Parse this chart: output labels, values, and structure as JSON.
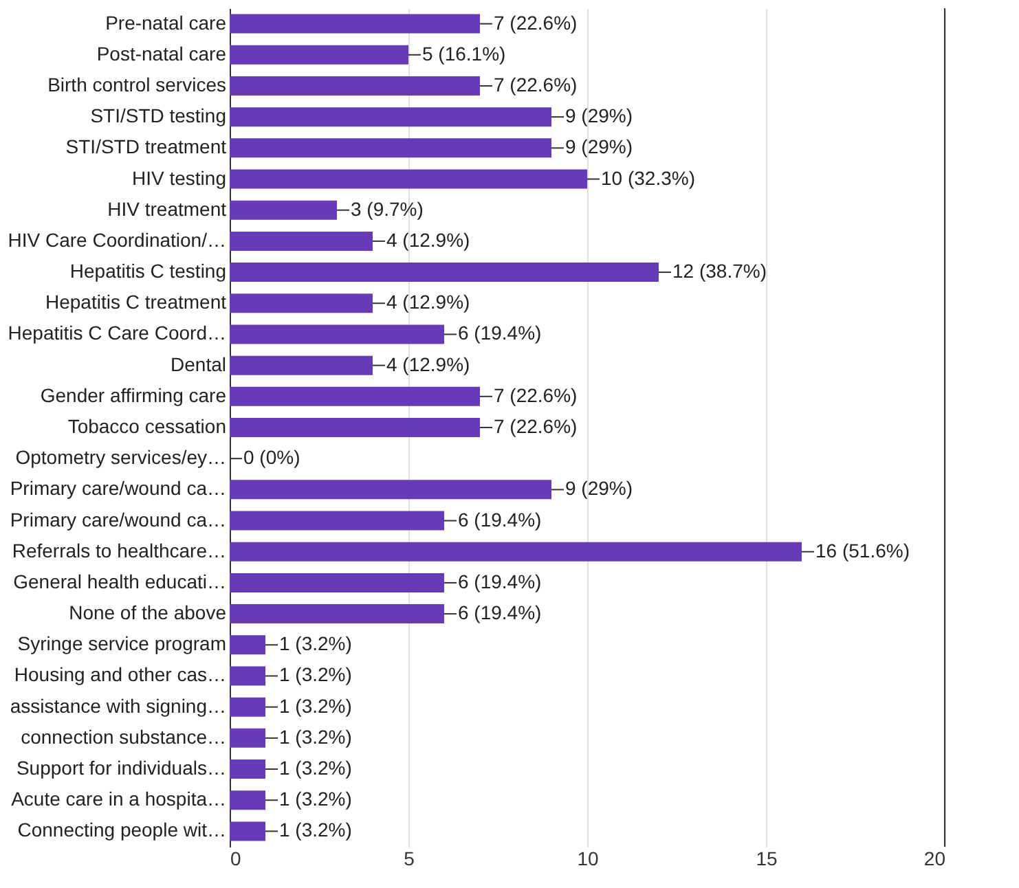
{
  "chart_data": {
    "type": "bar",
    "orientation": "horizontal",
    "categories": [
      "Pre-natal care",
      "Post-natal care",
      "Birth control services",
      "STI/STD testing",
      "STI/STD treatment",
      "HIV testing",
      "HIV treatment",
      "HIV Care Coordination/…",
      "Hepatitis C testing",
      "Hepatitis C treatment",
      "Hepatitis C Care Coord…",
      "Dental",
      "Gender affirming care",
      "Tobacco cessation",
      "Optometry services/ey…",
      "Primary care/wound ca…",
      "Primary care/wound ca…",
      "Referrals to healthcare…",
      "General health educati…",
      "None of the above",
      "Syringe service program",
      "Housing and other cas…",
      "assistance with signing…",
      "connection substance…",
      "Support for individuals…",
      "Acute care in a hospita…",
      "Connecting people wit…"
    ],
    "values": [
      7,
      5,
      7,
      9,
      9,
      10,
      3,
      4,
      12,
      4,
      6,
      4,
      7,
      7,
      0,
      9,
      6,
      16,
      6,
      6,
      1,
      1,
      1,
      1,
      1,
      1,
      1
    ],
    "value_labels": [
      "7 (22.6%)",
      "5 (16.1%)",
      "7 (22.6%)",
      "9 (29%)",
      "9 (29%)",
      "10 (32.3%)",
      "3 (9.7%)",
      "4 (12.9%)",
      "12 (38.7%)",
      "4 (12.9%)",
      "6 (19.4%)",
      "4 (12.9%)",
      "7 (22.6%)",
      "7 (22.6%)",
      "0 (0%)",
      "9 (29%)",
      "6 (19.4%)",
      "16 (51.6%)",
      "6 (19.4%)",
      "6 (19.4%)",
      "1 (3.2%)",
      "1 (3.2%)",
      "1 (3.2%)",
      "1 (3.2%)",
      "1 (3.2%)",
      "1 (3.2%)",
      "1 (3.2%)"
    ],
    "color": "#673ab7",
    "xlim": [
      0,
      20
    ],
    "xticks": [
      0,
      5,
      10,
      15,
      20
    ],
    "grid": "x"
  }
}
